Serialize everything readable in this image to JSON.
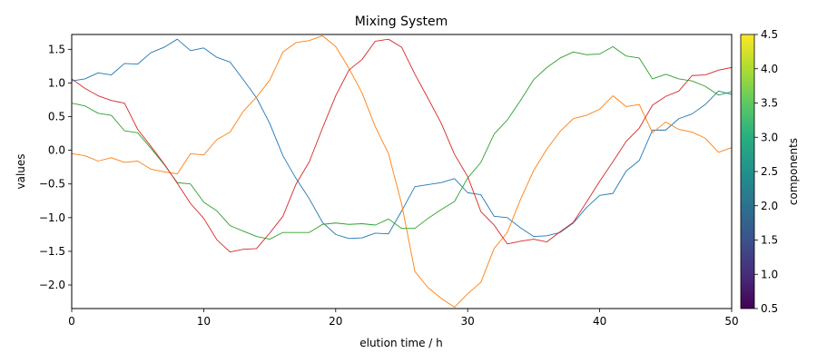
{
  "chart_data": {
    "type": "line",
    "title": "Mixing System",
    "xlabel": "elution time / h",
    "ylabel": "values",
    "xlim": [
      0,
      50
    ],
    "ylim": [
      -2.35,
      1.72
    ],
    "xticks": [
      0,
      10,
      20,
      30,
      40,
      50
    ],
    "yticks": [
      -2.0,
      -1.5,
      -1.0,
      -0.5,
      0.0,
      0.5,
      1.0,
      1.5
    ],
    "grid": false,
    "legend": "none",
    "colorbar": {
      "label": "components",
      "range": [
        0.5,
        4.5
      ],
      "ticks": [
        0.5,
        1.0,
        1.5,
        2.0,
        2.5,
        3.0,
        3.5,
        4.0,
        4.5
      ],
      "colormap": "viridis"
    },
    "x": [
      0,
      1,
      2,
      3,
      4,
      5,
      6,
      7,
      8,
      9,
      10,
      11,
      12,
      13,
      14,
      15,
      16,
      17,
      18,
      19,
      20,
      21,
      22,
      23,
      24,
      25,
      26,
      27,
      28,
      29,
      30,
      31,
      32,
      33,
      34,
      35,
      36,
      37,
      38,
      39,
      40,
      41,
      42,
      43,
      44,
      45,
      46,
      47,
      48,
      49,
      50
    ],
    "series": [
      {
        "color": "#1f77b4",
        "values": [
          1.03,
          1.06,
          1.15,
          1.12,
          1.29,
          1.28,
          1.45,
          1.53,
          1.65,
          1.48,
          1.52,
          1.38,
          1.31,
          1.05,
          0.78,
          0.4,
          -0.08,
          -0.42,
          -0.72,
          -1.07,
          -1.25,
          -1.31,
          -1.3,
          -1.23,
          -1.24,
          -0.9,
          -0.54,
          -0.51,
          -0.48,
          -0.42,
          -0.63,
          -0.66,
          -0.98,
          -1.0,
          -1.15,
          -1.28,
          -1.27,
          -1.22,
          -1.08,
          -0.85,
          -0.67,
          -0.64,
          -0.31,
          -0.15,
          0.3,
          0.3,
          0.47,
          0.54,
          0.68,
          0.88,
          0.83
        ]
      },
      {
        "color": "#ff7f0e",
        "values": [
          -0.05,
          -0.08,
          -0.16,
          -0.11,
          -0.18,
          -0.16,
          -0.28,
          -0.32,
          -0.35,
          -0.05,
          -0.07,
          0.16,
          0.27,
          0.58,
          0.79,
          1.04,
          1.46,
          1.6,
          1.63,
          1.7,
          1.54,
          1.22,
          0.85,
          0.35,
          -0.05,
          -0.8,
          -1.8,
          -2.04,
          -2.2,
          -2.33,
          -2.13,
          -1.96,
          -1.46,
          -1.22,
          -0.73,
          -0.3,
          0.02,
          0.28,
          0.47,
          0.52,
          0.61,
          0.81,
          0.65,
          0.68,
          0.26,
          0.42,
          0.31,
          0.27,
          0.18,
          -0.03,
          0.04
        ]
      },
      {
        "color": "#2ca02c",
        "values": [
          0.7,
          0.66,
          0.55,
          0.52,
          0.29,
          0.26,
          0.03,
          -0.21,
          -0.48,
          -0.5,
          -0.77,
          -0.9,
          -1.12,
          -1.2,
          -1.28,
          -1.32,
          -1.22,
          -1.22,
          -1.22,
          -1.1,
          -1.08,
          -1.1,
          -1.09,
          -1.11,
          -1.02,
          -1.16,
          -1.16,
          -1.01,
          -0.88,
          -0.76,
          -0.41,
          -0.18,
          0.24,
          0.45,
          0.74,
          1.05,
          1.23,
          1.37,
          1.46,
          1.42,
          1.43,
          1.54,
          1.4,
          1.37,
          1.06,
          1.13,
          1.06,
          1.03,
          0.95,
          0.82,
          0.87
        ]
      },
      {
        "color": "#d62728",
        "values": [
          1.06,
          0.92,
          0.81,
          0.74,
          0.7,
          0.31,
          0.06,
          -0.2,
          -0.49,
          -0.79,
          -1.01,
          -1.33,
          -1.51,
          -1.47,
          -1.46,
          -1.23,
          -0.98,
          -0.5,
          -0.17,
          0.33,
          0.81,
          1.19,
          1.35,
          1.62,
          1.65,
          1.53,
          1.13,
          0.77,
          0.4,
          -0.06,
          -0.39,
          -0.91,
          -1.11,
          -1.39,
          -1.35,
          -1.32,
          -1.36,
          -1.21,
          -1.07,
          -0.77,
          -0.46,
          -0.17,
          0.13,
          0.33,
          0.67,
          0.8,
          0.88,
          1.11,
          1.12,
          1.19,
          1.23
        ]
      }
    ]
  }
}
